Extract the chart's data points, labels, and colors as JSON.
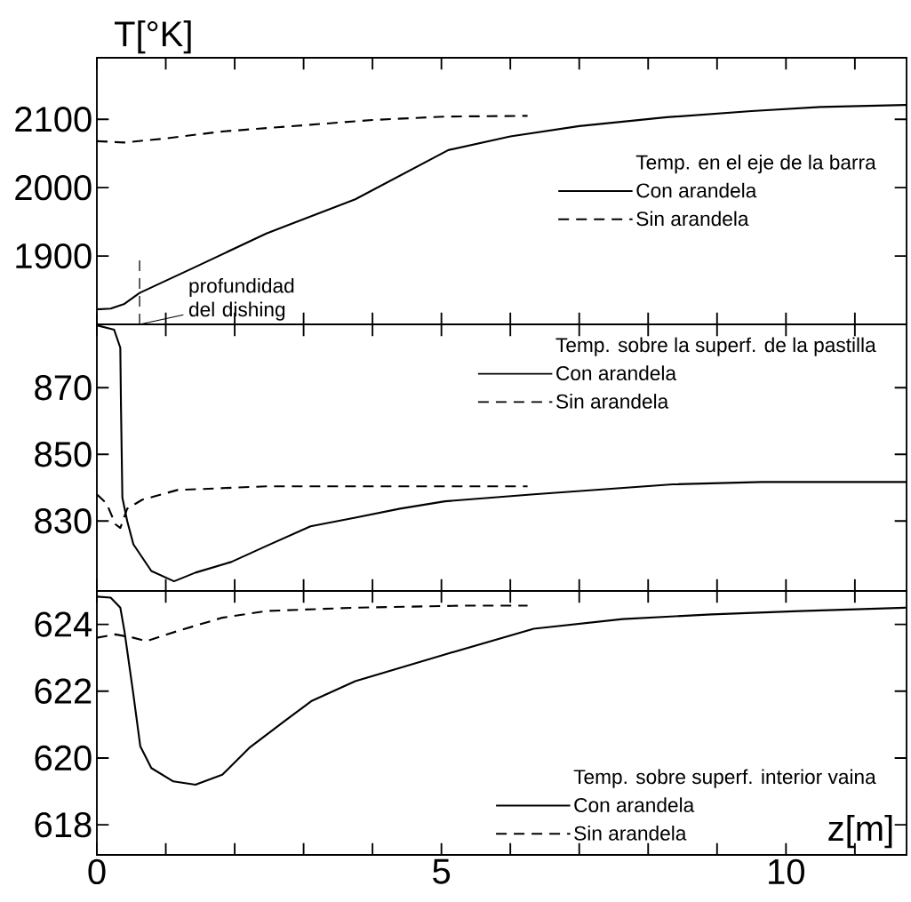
{
  "chart_data": [
    {
      "type": "line",
      "ylabel": "T[°K]",
      "legend_title": "Temp. en el eje de la barra",
      "legend": "right",
      "tick_labels": "y",
      "xlim": [
        0,
        11.75
      ],
      "ylim": [
        1800,
        2190
      ],
      "xticks": [
        0,
        {
          "value": 1,
          "label": null
        },
        {
          "value": 2,
          "label": null
        },
        {
          "value": 3,
          "label": null
        },
        {
          "value": 4,
          "label": null
        },
        5,
        {
          "value": 6,
          "label": null
        },
        {
          "value": 7,
          "label": null
        },
        {
          "value": 8,
          "label": null
        },
        {
          "value": 9,
          "label": null
        },
        10,
        {
          "value": 11,
          "label": null
        }
      ],
      "yticks": [
        1900,
        2000,
        2100
      ],
      "ref_lines": [
        {
          "axis": "x",
          "value": 0.62,
          "label": "profundidad del dishing",
          "line_style": "dashed",
          "color": "#000000"
        }
      ],
      "series": [
        {
          "name": "Con arandela",
          "color": "#000000",
          "line_style": "solid",
          "x": [
            0,
            0.2,
            0.4,
            0.62,
            1.43,
            2.46,
            3.75,
            5.1,
            6.0,
            7.0,
            8.27,
            9.5,
            10.5,
            11.75
          ],
          "values": [
            1822,
            1823,
            1830,
            1846,
            1884,
            1933,
            1983,
            2055,
            2075,
            2090,
            2103,
            2112,
            2118,
            2121
          ]
        },
        {
          "name": "Sin arandela",
          "color": "#000000",
          "line_style": "dashed",
          "x": [
            0,
            0.4,
            1.0,
            1.8,
            3.1,
            4.0,
            5.05,
            6.25
          ],
          "values": [
            2068,
            2066,
            2072,
            2082,
            2092,
            2099,
            2104,
            2105
          ]
        }
      ]
    },
    {
      "type": "line",
      "legend_title": "Temp. sobre la superf. de la pastilla",
      "legend": "top right",
      "tick_labels": "y",
      "xlim": [
        0,
        11.75
      ],
      "ylim": [
        809,
        889
      ],
      "xticks": [
        0,
        {
          "value": 1,
          "label": null
        },
        {
          "value": 2,
          "label": null
        },
        {
          "value": 3,
          "label": null
        },
        {
          "value": 4,
          "label": null
        },
        5,
        {
          "value": 6,
          "label": null
        },
        {
          "value": 7,
          "label": null
        },
        {
          "value": 8,
          "label": null
        },
        {
          "value": 9,
          "label": null
        },
        10,
        {
          "value": 11,
          "label": null
        }
      ],
      "yticks": [
        830,
        850,
        870
      ],
      "series": [
        {
          "name": "Con arandela",
          "color": "#000000",
          "line_style": "solid",
          "x": [
            0,
            0.25,
            0.34,
            0.35,
            0.37,
            0.44,
            0.53,
            0.79,
            1.12,
            1.43,
            1.95,
            2.46,
            3.1,
            3.75,
            4.4,
            5.05,
            6.34,
            8.36,
            9.65,
            11.75
          ],
          "values": [
            888.7,
            887.4,
            882,
            864,
            837,
            830,
            823,
            815,
            811.9,
            814.5,
            817.7,
            822.5,
            828.4,
            831,
            833.7,
            835.9,
            838,
            841,
            841.7,
            841.7
          ]
        },
        {
          "name": "Sin arandela",
          "color": "#000000",
          "line_style": "dashed",
          "x": [
            0,
            0.14,
            0.27,
            0.34,
            0.44,
            0.66,
            1.17,
            2.46,
            5.05,
            6.25
          ],
          "values": [
            838,
            835.3,
            829,
            827.9,
            833.7,
            836.4,
            839.3,
            840.4,
            840.4,
            840.4
          ]
        }
      ]
    },
    {
      "type": "line",
      "xlabel": "z[m]",
      "legend_title": "Temp. sobre superf. interior vaina",
      "legend": "bottom right",
      "xlim": [
        0,
        11.75
      ],
      "ylim": [
        617.1,
        625
      ],
      "xticks": [
        0,
        {
          "value": 1,
          "label": null
        },
        {
          "value": 2,
          "label": null
        },
        {
          "value": 3,
          "label": null
        },
        {
          "value": 4,
          "label": null
        },
        5,
        {
          "value": 6,
          "label": null
        },
        {
          "value": 7,
          "label": null
        },
        {
          "value": 8,
          "label": null
        },
        {
          "value": 9,
          "label": null
        },
        10,
        {
          "value": 11,
          "label": null
        }
      ],
      "yticks": [
        618,
        620,
        622,
        624
      ],
      "series": [
        {
          "name": "Con arandela",
          "color": "#000000",
          "line_style": "solid",
          "x": [
            0,
            0.2,
            0.34,
            0.4,
            0.53,
            0.63,
            0.79,
            1.11,
            1.43,
            1.82,
            2.21,
            2.72,
            3.11,
            3.75,
            4.4,
            5.05,
            6.34,
            7.63,
            8.92,
            10.2,
            11.75
          ],
          "values": [
            624.83,
            624.8,
            624.5,
            623.8,
            621.9,
            620.35,
            619.7,
            619.3,
            619.2,
            619.5,
            620.3,
            621.1,
            621.7,
            622.3,
            622.7,
            623.1,
            623.87,
            624.16,
            624.3,
            624.4,
            624.5
          ]
        },
        {
          "name": "Sin arandela",
          "color": "#000000",
          "line_style": "dashed",
          "x": [
            0,
            0.27,
            0.53,
            0.72,
            1.17,
            1.82,
            2.46,
            3.75,
            5.3,
            6.25
          ],
          "values": [
            623.6,
            623.7,
            623.6,
            623.5,
            623.8,
            624.2,
            624.4,
            624.5,
            624.56,
            624.56
          ]
        }
      ]
    }
  ]
}
